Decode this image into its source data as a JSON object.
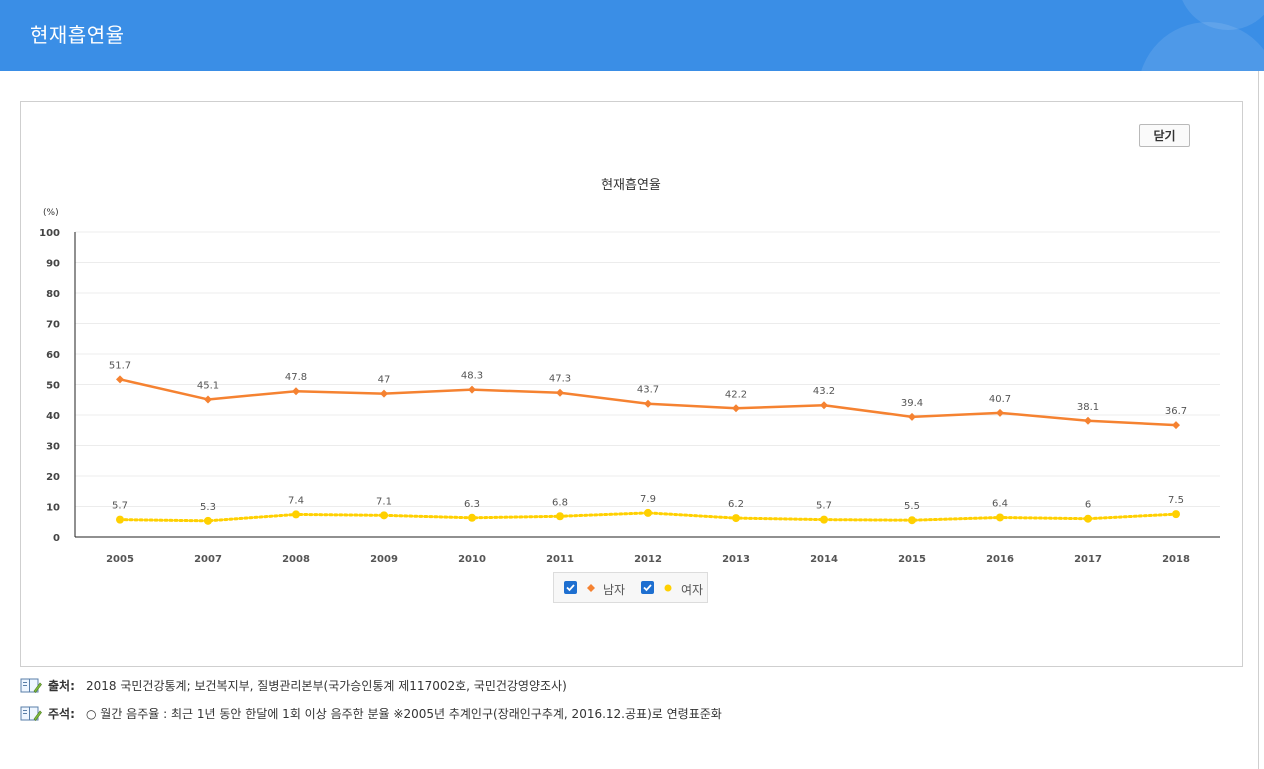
{
  "header": {
    "title": "현재흡연율"
  },
  "buttons": {
    "close_label": "닫기"
  },
  "chart_data": {
    "type": "line",
    "title": "현재흡연율",
    "ylabel": "(%)",
    "xlabel": "",
    "ylim": [
      0,
      100
    ],
    "yticks": [
      0,
      10,
      20,
      30,
      40,
      50,
      60,
      70,
      80,
      90,
      100
    ],
    "grid": true,
    "legend_position": "bottom-center",
    "categories": [
      "2005",
      "2007",
      "2008",
      "2009",
      "2010",
      "2011",
      "2012",
      "2013",
      "2014",
      "2015",
      "2016",
      "2017",
      "2018"
    ],
    "series": [
      {
        "name": "남자",
        "values": [
          51.7,
          45.1,
          47.8,
          47,
          48.3,
          47.3,
          43.7,
          42.2,
          43.2,
          39.4,
          40.7,
          38.1,
          36.7
        ],
        "color": "#f58231",
        "marker": "diamond",
        "line": "solid"
      },
      {
        "name": "여자",
        "values": [
          5.7,
          5.3,
          7.4,
          7.1,
          6.3,
          6.8,
          7.9,
          6.2,
          5.7,
          5.5,
          6.4,
          6,
          7.5
        ],
        "color": "#ffd000",
        "marker": "circle",
        "line": "dotted"
      }
    ]
  },
  "legend": {
    "checked": [
      true,
      true
    ]
  },
  "notes": [
    {
      "key": "출처:",
      "value": "2018 국민건강통계; 보건복지부, 질병관리본부(국가승인통계 제117002호, 국민건강영양조사)"
    },
    {
      "key": "주석:",
      "value": "○ 월간 음주율 : 최근 1년 동안 한달에 1회 이상 음주한 분율 ※2005년 추계인구(장래인구추계, 2016.12.공표)로 연령표준화"
    }
  ]
}
